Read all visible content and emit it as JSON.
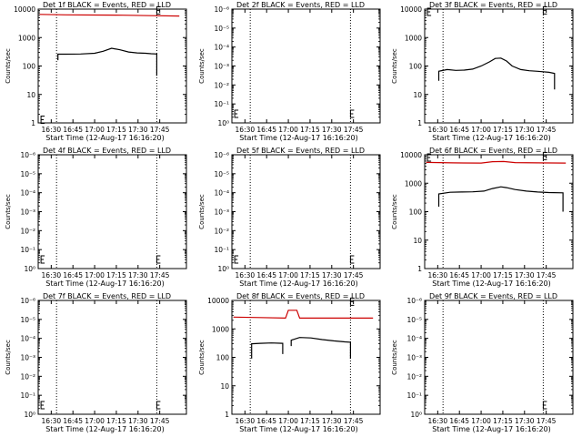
{
  "chart_data": [
    {
      "type": "line",
      "title": "Det 1f BLACK = Events, RED = LLD",
      "xlabel": "Start Time (12-Aug-17 16:16:20)",
      "ylabel": "Counts/sec",
      "xticks": [
        "16:30",
        "16:45",
        "17:00",
        "17:15",
        "17:30",
        "17:45"
      ],
      "xlim": [
        0,
        105
      ],
      "log_y": true,
      "ylim": [
        1,
        10000
      ],
      "yticks": [
        "1",
        "10",
        "100",
        "1000",
        "10000"
      ],
      "vlines": [
        13,
        84
      ],
      "markers": [
        {
          "x": 2,
          "y": 1.3
        },
        {
          "x": 84,
          "y": 9000
        }
      ],
      "series": [
        {
          "color": "#cc0000",
          "x": [
            1,
            20,
            40,
            60,
            80,
            100
          ],
          "y": [
            6500,
            6300,
            6200,
            6100,
            5900,
            5700
          ]
        },
        {
          "color": "#000000",
          "x": [
            14,
            14,
            20,
            30,
            40,
            46,
            52,
            58,
            64,
            70,
            76,
            80,
            84,
            84
          ],
          "y": [
            160,
            260,
            260,
            265,
            280,
            330,
            420,
            370,
            310,
            290,
            280,
            270,
            265,
            45
          ]
        }
      ]
    },
    {
      "type": "line",
      "title": "Det 2f BLACK = Events, RED = LLD",
      "xlabel": "Start Time (12-Aug-17 16:16:20)",
      "ylabel": "Counts/sec",
      "xticks": [
        "16:30",
        "16:45",
        "17:00",
        "17:15",
        "17:30",
        "17:45"
      ],
      "xlim": [
        0,
        105
      ],
      "log_y": true,
      "ylim": [
        1,
        1e-06
      ],
      "yticks": [
        "10⁰",
        "10⁻¹",
        "10⁻²",
        "10⁻³",
        "10⁻⁴",
        "10⁻⁵",
        "10⁻⁶"
      ],
      "vlines": [
        13,
        84
      ],
      "markers": [
        {
          "x": 2,
          "y": 0.33
        },
        {
          "x": 84,
          "y": 0.33
        }
      ],
      "series": []
    },
    {
      "type": "line",
      "title": "Det 3f BLACK = Events, RED = LLD",
      "xlabel": "Start Time (12-Aug-17 16:16:20)",
      "ylabel": "Counts/sec",
      "xticks": [
        "16:30",
        "16:45",
        "17:00",
        "17:15",
        "17:30",
        "17:45"
      ],
      "xlim": [
        0,
        105
      ],
      "log_y": true,
      "ylim": [
        1,
        10000
      ],
      "yticks": [
        "1",
        "10",
        "100",
        "1000",
        "10000"
      ],
      "vlines": [
        13,
        84
      ],
      "markers": [
        {
          "x": 2,
          "y": 8000
        },
        {
          "x": 84,
          "y": 9000
        }
      ],
      "series": [
        {
          "color": "#000000",
          "x": [
            10,
            10,
            16,
            22,
            28,
            34,
            40,
            46,
            50,
            54,
            58,
            62,
            68,
            74,
            80,
            88,
            92,
            92
          ],
          "y": [
            30,
            65,
            75,
            70,
            72,
            78,
            100,
            140,
            185,
            190,
            150,
            100,
            75,
            68,
            65,
            60,
            55,
            15
          ]
        }
      ]
    },
    {
      "type": "line",
      "title": "Det 4f BLACK = Events, RED = LLD",
      "xlabel": "Start Time (12-Aug-17 16:16:20)",
      "ylabel": "Counts/sec",
      "xticks": [
        "16:30",
        "16:45",
        "17:00",
        "17:15",
        "17:30",
        "17:45"
      ],
      "xlim": [
        0,
        105
      ],
      "log_y": true,
      "ylim": [
        1,
        1e-06
      ],
      "yticks": [
        "10⁰",
        "10⁻¹",
        "10⁻²",
        "10⁻³",
        "10⁻⁴",
        "10⁻⁵",
        "10⁻⁶"
      ],
      "vlines": [
        13,
        84
      ],
      "markers": [
        {
          "x": 2,
          "y": 0.33
        },
        {
          "x": 84,
          "y": 0.33
        }
      ],
      "series": []
    },
    {
      "type": "line",
      "title": "Det 5f BLACK = Events, RED = LLD",
      "xlabel": "Start Time (12-Aug-17 16:16:20)",
      "ylabel": "Counts/sec",
      "xticks": [
        "16:30",
        "16:45",
        "17:00",
        "17:15",
        "17:30",
        "17:45"
      ],
      "xlim": [
        0,
        105
      ],
      "log_y": true,
      "ylim": [
        1,
        1e-06
      ],
      "yticks": [
        "10⁰",
        "10⁻¹",
        "10⁻²",
        "10⁻³",
        "10⁻⁴",
        "10⁻⁵",
        "10⁻⁶"
      ],
      "vlines": [
        13,
        84
      ],
      "markers": [
        {
          "x": 2,
          "y": 0.33
        },
        {
          "x": 84,
          "y": 0.33
        }
      ],
      "series": []
    },
    {
      "type": "line",
      "title": "Det 6f BLACK = Events, RED = LLD",
      "xlabel": "Start Time (12-Aug-17 16:16:20)",
      "ylabel": "Counts/sec",
      "xticks": [
        "16:30",
        "16:45",
        "17:00",
        "17:15",
        "17:30",
        "17:45"
      ],
      "xlim": [
        0,
        105
      ],
      "log_y": true,
      "ylim": [
        1,
        10000
      ],
      "yticks": [
        "1",
        "10",
        "100",
        "1000",
        "10000"
      ],
      "vlines": [
        13,
        84
      ],
      "markers": [
        {
          "x": 2,
          "y": 8000
        },
        {
          "x": 84,
          "y": 9000
        }
      ],
      "series": [
        {
          "color": "#cc0000",
          "x": [
            1,
            20,
            40,
            48,
            56,
            64,
            80,
            100
          ],
          "y": [
            5400,
            5200,
            5100,
            5700,
            5800,
            5300,
            5200,
            5100
          ]
        },
        {
          "color": "#000000",
          "x": [
            10,
            10,
            18,
            26,
            34,
            42,
            48,
            54,
            58,
            64,
            72,
            80,
            88,
            98,
            98
          ],
          "y": [
            150,
            420,
            480,
            490,
            500,
            530,
            650,
            750,
            700,
            600,
            530,
            490,
            470,
            460,
            100
          ]
        }
      ]
    },
    {
      "type": "line",
      "title": "Det 7f BLACK = Events, RED = LLD",
      "xlabel": "Start Time (12-Aug-17 16:16:20)",
      "ylabel": "Counts/sec",
      "xticks": [
        "16:30",
        "16:45",
        "17:00",
        "17:15",
        "17:30",
        "17:45"
      ],
      "xlim": [
        0,
        105
      ],
      "log_y": true,
      "ylim": [
        1,
        1e-06
      ],
      "yticks": [
        "10⁰",
        "10⁻¹",
        "10⁻²",
        "10⁻³",
        "10⁻⁴",
        "10⁻⁵",
        "10⁻⁶"
      ],
      "vlines": [
        13,
        84
      ],
      "markers": [
        {
          "x": 2,
          "y": 0.33
        },
        {
          "x": 84,
          "y": 0.33
        }
      ],
      "series": []
    },
    {
      "type": "line",
      "title": "Det 8f BLACK = Events, RED = LLD",
      "xlabel": "Start Time (12-Aug-17 16:16:20)",
      "ylabel": "Counts/sec",
      "xticks": [
        "16:30",
        "16:45",
        "17:00",
        "17:15",
        "17:30",
        "17:45"
      ],
      "xlim": [
        0,
        105
      ],
      "log_y": true,
      "ylim": [
        1,
        10000
      ],
      "yticks": [
        "1",
        "10",
        "100",
        "1000",
        "10000"
      ],
      "vlines": [
        13,
        84
      ],
      "markers": [
        {
          "x": 84,
          "y": 9000
        }
      ],
      "series": [
        {
          "color": "#cc0000",
          "x": [
            1,
            20,
            38,
            40,
            46,
            48,
            60,
            80,
            100
          ],
          "y": [
            2600,
            2500,
            2400,
            4500,
            4500,
            2400,
            2400,
            2400,
            2400
          ]
        },
        {
          "color": "#000000",
          "x": [
            14,
            14,
            20,
            28,
            36,
            36
          ],
          "y": [
            90,
            300,
            310,
            320,
            310,
            130
          ]
        },
        {
          "color": "#000000",
          "x": [
            42,
            42,
            48,
            56,
            64,
            72,
            80,
            84,
            84
          ],
          "y": [
            250,
            400,
            500,
            480,
            420,
            380,
            350,
            340,
            90
          ]
        }
      ]
    },
    {
      "type": "line",
      "title": "Det 9f BLACK = Events, RED = LLD",
      "xlabel": "Start Time (12-Aug-17 16:16:20)",
      "ylabel": "Counts/sec",
      "xticks": [
        "16:30",
        "16:45",
        "17:00",
        "17:15",
        "17:30",
        "17:45"
      ],
      "xlim": [
        0,
        105
      ],
      "log_y": true,
      "ylim": [
        1,
        1e-06
      ],
      "yticks": [
        "10⁰",
        "10⁻¹",
        "10⁻²",
        "10⁻³",
        "10⁻⁴",
        "10⁻⁵",
        "10⁻⁶"
      ],
      "vlines": [
        13,
        84
      ],
      "markers": [
        {
          "x": 84,
          "y": 0.33
        }
      ],
      "series": []
    }
  ]
}
